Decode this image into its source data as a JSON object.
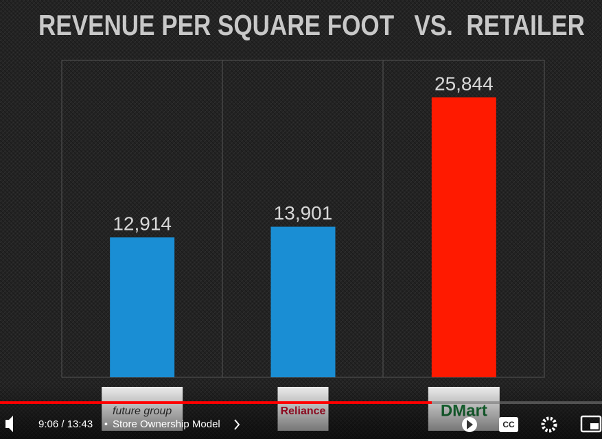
{
  "chart_data": {
    "type": "bar",
    "title": "REVENUE PER SQUARE FOOT   VS.  RETAILER",
    "categories": [
      "future group",
      "Reliance",
      "DMart"
    ],
    "series": [
      {
        "name": null,
        "colors": [
          "#1a8ed4",
          "#1a8ed4",
          "#ff1a00"
        ],
        "values": [
          12914,
          13901,
          25844
        ],
        "value_labels": [
          "12,914",
          "13,901",
          "25,844"
        ]
      }
    ]
  },
  "player": {
    "time": "9:06 / 13:43",
    "chapter": "Store Ownership Model",
    "captions": "CC"
  }
}
